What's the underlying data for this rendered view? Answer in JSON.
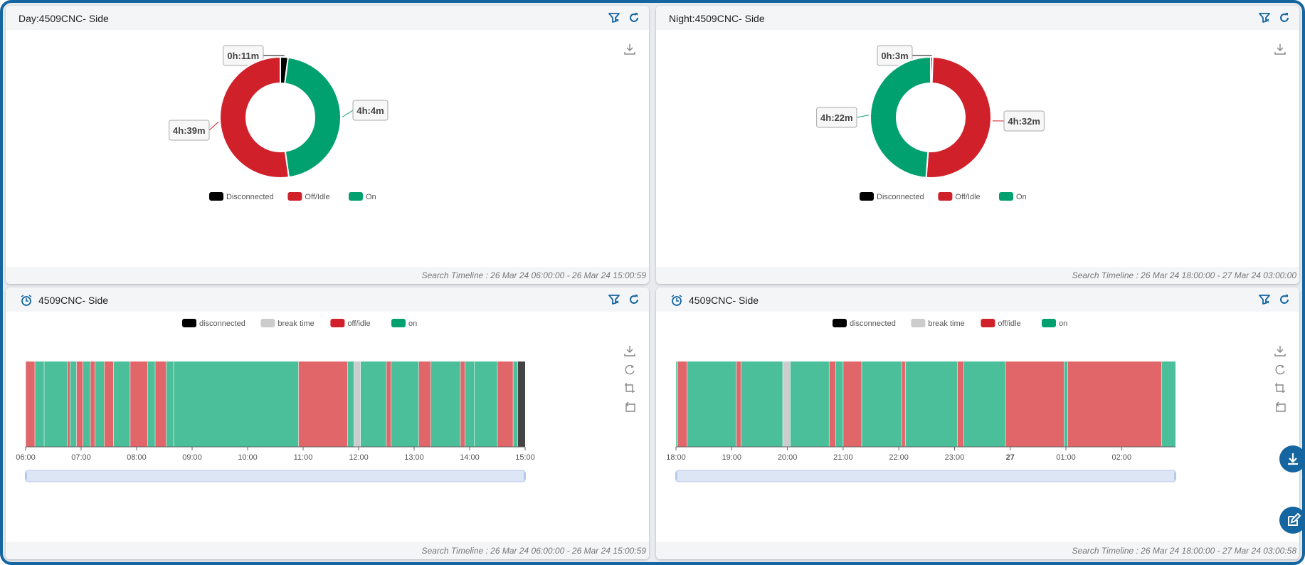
{
  "colors": {
    "disconnected": "#000000",
    "break": "#cccccc",
    "off": "#d0202a",
    "on": "#00a06f",
    "off_timeline": "#e06669",
    "on_timeline": "#4bbf9a",
    "accent": "#1565a0"
  },
  "icons": {
    "header": [
      "filter-icon",
      "refresh-icon"
    ],
    "clock": "alarm-clock-icon",
    "donut_toolbox": [
      "download-icon"
    ],
    "timeline_toolbox": [
      "download-icon",
      "restore-icon",
      "zoom-icon",
      "zoom-back-icon"
    ],
    "fabs": [
      "download-fab-icon",
      "edit-fab-icon"
    ]
  },
  "legends": {
    "donut": [
      "Disconnected",
      "Off/Idle",
      "On"
    ],
    "timeline": [
      "disconnected",
      "break time",
      "off/idle",
      "on"
    ]
  },
  "panels": {
    "day_pie": {
      "title": "Day:4509CNC- Side",
      "footer": "Search Timeline : 26 Mar 24 06:00:00 - 26 Mar 24 15:00:59"
    },
    "night_pie": {
      "title": "Night:4509CNC- Side",
      "footer": "Search Timeline : 26 Mar 24 18:00:00 - 27 Mar 24 03:00:00"
    },
    "day_timeline": {
      "title": "4509CNC- Side",
      "footer": "Search Timeline : 26 Mar 24 06:00:00 - 26 Mar 24 15:00:59"
    },
    "night_timeline": {
      "title": "4509CNC- Side",
      "footer": "Search Timeline : 26 Mar 24 18:00:00 - 27 Mar 24 03:00:58"
    }
  },
  "chart_data": [
    {
      "type": "pie",
      "title": "Day:4509CNC- Side",
      "slices": [
        {
          "name": "Disconnected",
          "label": "0h:11m",
          "minutes": 11
        },
        {
          "name": "On",
          "label": "4h:4m",
          "minutes": 244
        },
        {
          "name": "Off/Idle",
          "label": "4h:39m",
          "minutes": 279
        }
      ]
    },
    {
      "type": "pie",
      "title": "Night:4509CNC- Side",
      "slices": [
        {
          "name": "Disconnected",
          "label": "0h:3m",
          "minutes": 3
        },
        {
          "name": "Off/Idle",
          "label": "4h:32m",
          "minutes": 272
        },
        {
          "name": "On",
          "label": "4h:22m",
          "minutes": 262
        }
      ]
    },
    {
      "type": "bar",
      "title": "4509CNC- Side",
      "x_range": [
        "06:00",
        "15:00"
      ],
      "ticks": [
        "06:00",
        "07:00",
        "08:00",
        "09:00",
        "10:00",
        "11:00",
        "12:00",
        "13:00",
        "14:00",
        "15:00"
      ],
      "segments": [
        {
          "start": "06:00",
          "end": "06:10",
          "state": "off"
        },
        {
          "start": "06:10",
          "end": "06:20",
          "state": "on"
        },
        {
          "start": "06:20",
          "end": "06:45",
          "state": "on"
        },
        {
          "start": "06:45",
          "end": "06:48",
          "state": "off"
        },
        {
          "start": "06:48",
          "end": "06:55",
          "state": "on"
        },
        {
          "start": "06:55",
          "end": "07:02",
          "state": "off"
        },
        {
          "start": "07:02",
          "end": "07:10",
          "state": "on"
        },
        {
          "start": "07:10",
          "end": "07:15",
          "state": "off"
        },
        {
          "start": "07:15",
          "end": "07:25",
          "state": "on"
        },
        {
          "start": "07:25",
          "end": "07:35",
          "state": "off"
        },
        {
          "start": "07:35",
          "end": "07:53",
          "state": "on"
        },
        {
          "start": "07:53",
          "end": "08:12",
          "state": "off"
        },
        {
          "start": "08:12",
          "end": "08:20",
          "state": "on"
        },
        {
          "start": "08:20",
          "end": "08:32",
          "state": "off"
        },
        {
          "start": "08:32",
          "end": "08:40",
          "state": "on"
        },
        {
          "start": "08:40",
          "end": "10:55",
          "state": "on"
        },
        {
          "start": "10:55",
          "end": "11:48",
          "state": "off"
        },
        {
          "start": "11:48",
          "end": "11:55",
          "state": "on"
        },
        {
          "start": "11:55",
          "end": "12:02",
          "state": "break"
        },
        {
          "start": "12:02",
          "end": "12:30",
          "state": "on"
        },
        {
          "start": "12:30",
          "end": "12:35",
          "state": "off"
        },
        {
          "start": "12:35",
          "end": "13:05",
          "state": "on"
        },
        {
          "start": "13:05",
          "end": "13:18",
          "state": "off"
        },
        {
          "start": "13:18",
          "end": "13:50",
          "state": "on"
        },
        {
          "start": "13:50",
          "end": "13:55",
          "state": "off"
        },
        {
          "start": "13:55",
          "end": "14:05",
          "state": "on"
        },
        {
          "start": "14:05",
          "end": "14:30",
          "state": "on"
        },
        {
          "start": "14:30",
          "end": "14:47",
          "state": "off"
        },
        {
          "start": "14:47",
          "end": "14:52",
          "state": "on"
        },
        {
          "start": "14:52",
          "end": "15:00",
          "state": "disconnected"
        }
      ],
      "legend": [
        "disconnected",
        "break time",
        "off/idle",
        "on"
      ]
    },
    {
      "type": "bar",
      "title": "4509CNC- Side",
      "x_range": [
        "18:00",
        "02:58"
      ],
      "ticks": [
        "18:00",
        "19:00",
        "20:00",
        "21:00",
        "22:00",
        "23:00",
        "27",
        "01:00",
        "02:00"
      ],
      "segments": [
        {
          "start": "18:00",
          "end": "18:02",
          "state": "on"
        },
        {
          "start": "18:02",
          "end": "18:12",
          "state": "off"
        },
        {
          "start": "18:12",
          "end": "19:05",
          "state": "on"
        },
        {
          "start": "19:05",
          "end": "19:10",
          "state": "off"
        },
        {
          "start": "19:10",
          "end": "19:55",
          "state": "on"
        },
        {
          "start": "19:55",
          "end": "20:03",
          "state": "break"
        },
        {
          "start": "20:03",
          "end": "20:45",
          "state": "on"
        },
        {
          "start": "20:45",
          "end": "20:52",
          "state": "off"
        },
        {
          "start": "20:52",
          "end": "21:00",
          "state": "on"
        },
        {
          "start": "21:00",
          "end": "21:20",
          "state": "off"
        },
        {
          "start": "21:20",
          "end": "22:03",
          "state": "on"
        },
        {
          "start": "22:03",
          "end": "22:07",
          "state": "off"
        },
        {
          "start": "22:07",
          "end": "23:03",
          "state": "on"
        },
        {
          "start": "23:03",
          "end": "23:10",
          "state": "off"
        },
        {
          "start": "23:10",
          "end": "23:55",
          "state": "on"
        },
        {
          "start": "23:55",
          "end": "00:58",
          "state": "off"
        },
        {
          "start": "00:58",
          "end": "01:02",
          "state": "on"
        },
        {
          "start": "01:02",
          "end": "02:43",
          "state": "off"
        },
        {
          "start": "02:43",
          "end": "02:58",
          "state": "on"
        }
      ],
      "legend": [
        "disconnected",
        "break time",
        "off/idle",
        "on"
      ]
    }
  ]
}
